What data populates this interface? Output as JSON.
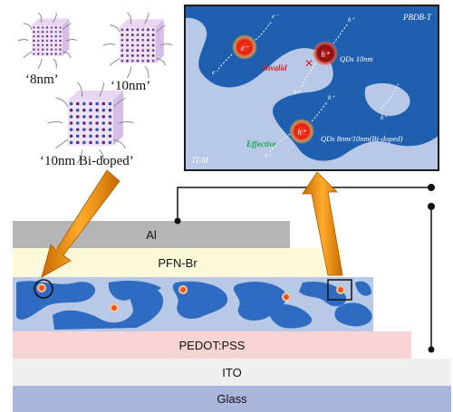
{
  "quantum_dots": {
    "labels": [
      "‘8nm’",
      "‘10nm’",
      "‘10nm Bi-doped’"
    ]
  },
  "inset": {
    "donor_label": "PBDB-T",
    "acceptor_label": "IT-M",
    "invalid_label": "Invalid",
    "effective_label": "Effective",
    "qd_10nm_label": "QDs 10nm",
    "qd_mixed_label": "QDs 8nm/10nm(Bi-doped)",
    "electron_symbol": "e⁻",
    "hole_symbol": "h⁺",
    "colors": {
      "donor": "#1f5fb0",
      "acceptor": "#b7c9e6",
      "invalid": "#d81e1e",
      "effective": "#1fa84f",
      "frame": "#1b1b1b"
    }
  },
  "layers": {
    "al": "Al",
    "pfn": "PFN-Br",
    "pedot": "PEDOT:PSS",
    "ito": "ITO",
    "glass": "Glass",
    "colors": {
      "al": "#b5b5b5",
      "pfn": "#fcfad8",
      "active": "#b7c9e6",
      "donor": "#2f6bc0",
      "pedot": "#f8d4d4",
      "ito": "#f0f0f0",
      "glass": "#aab6dc"
    }
  }
}
